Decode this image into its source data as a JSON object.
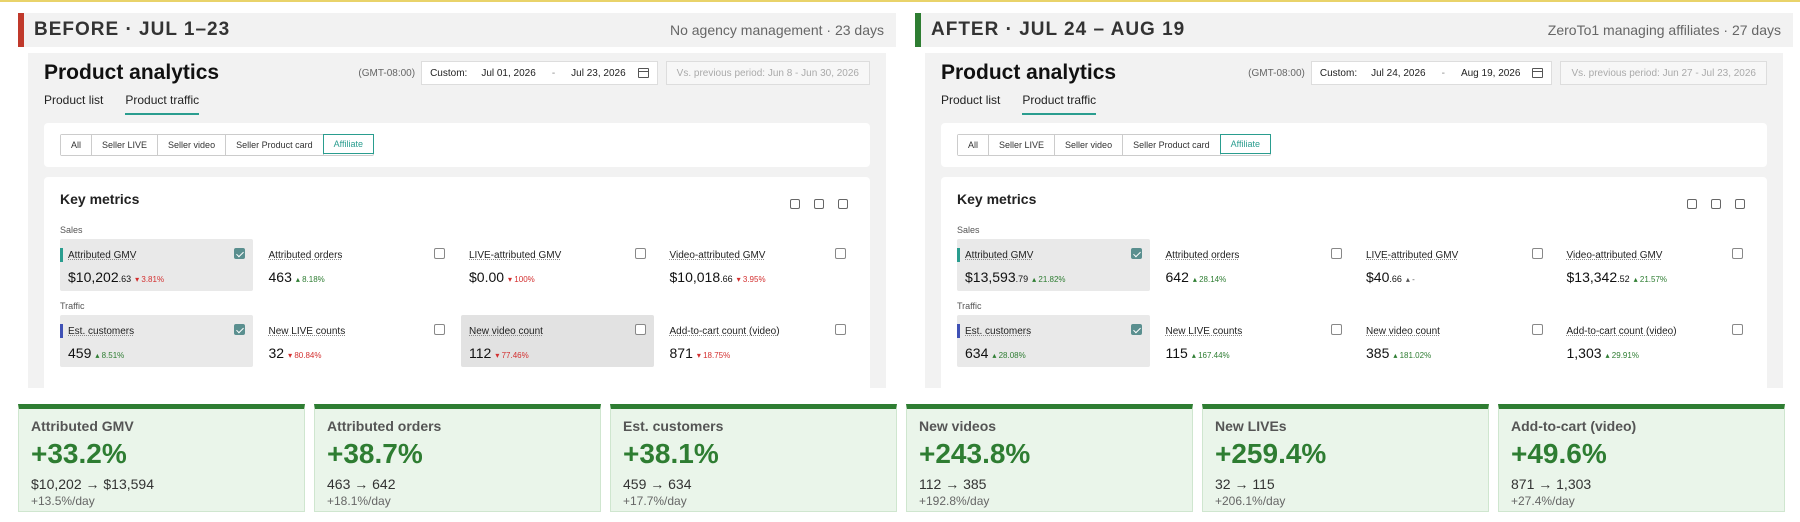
{
  "panels": {
    "before": {
      "title": "BEFORE · JUL 1–23",
      "subtitle": "No agency management · 23 days",
      "app_title": "Product analytics",
      "timezone": "(GMT-08:00)",
      "date_label": "Custom:",
      "date_start": "Jul 01, 2026",
      "date_end": "Jul 23, 2026",
      "compare": "Vs. previous period: Jun 8 - Jun 30, 2026",
      "tabs": [
        "Product list",
        "Product traffic"
      ],
      "filters": [
        "All",
        "Seller LIVE",
        "Seller video",
        "Seller Product card",
        "Affiliate"
      ],
      "key_metrics_title": "Key metrics",
      "sales_label": "Sales",
      "traffic_label": "Traffic",
      "sales": [
        {
          "name": "Attributed GMV",
          "value": "$10,202",
          "cents": ".63",
          "change": "3.81%",
          "dir": "down",
          "checked": true
        },
        {
          "name": "Attributed orders",
          "value": "463",
          "cents": "",
          "change": "8.18%",
          "dir": "up",
          "checked": false
        },
        {
          "name": "LIVE-attributed GMV",
          "value": "$0.00",
          "cents": "",
          "change": "100%",
          "dir": "down",
          "checked": false
        },
        {
          "name": "Video-attributed GMV",
          "value": "$10,018",
          "cents": ".66",
          "change": "3.95%",
          "dir": "down",
          "checked": false
        }
      ],
      "traffic": [
        {
          "name": "Est. customers",
          "value": "459",
          "change": "8.51%",
          "dir": "up",
          "checked": true
        },
        {
          "name": "New LIVE counts",
          "value": "32",
          "change": "80.84%",
          "dir": "down",
          "checked": false
        },
        {
          "name": "New video count",
          "value": "112",
          "change": "77.46%",
          "dir": "down",
          "checked": false
        },
        {
          "name": "Add-to-cart count (video)",
          "value": "871",
          "change": "18.75%",
          "dir": "down",
          "checked": false
        }
      ]
    },
    "after": {
      "title": "AFTER · JUL 24 – AUG 19",
      "subtitle": "ZeroTo1 managing affiliates · 27 days",
      "app_title": "Product analytics",
      "timezone": "(GMT-08:00)",
      "date_label": "Custom:",
      "date_start": "Jul 24, 2026",
      "date_end": "Aug 19, 2026",
      "compare": "Vs. previous period: Jun 27 - Jul 23, 2026",
      "tabs": [
        "Product list",
        "Product traffic"
      ],
      "filters": [
        "All",
        "Seller LIVE",
        "Seller video",
        "Seller Product card",
        "Affiliate"
      ],
      "key_metrics_title": "Key metrics",
      "sales_label": "Sales",
      "traffic_label": "Traffic",
      "sales": [
        {
          "name": "Attributed GMV",
          "value": "$13,593",
          "cents": ".79",
          "change": "21.82%",
          "dir": "up",
          "checked": true
        },
        {
          "name": "Attributed orders",
          "value": "642",
          "cents": "",
          "change": "28.14%",
          "dir": "up",
          "checked": false
        },
        {
          "name": "LIVE-attributed GMV",
          "value": "$40",
          "cents": ".66",
          "change": "-",
          "dir": "up",
          "checked": false
        },
        {
          "name": "Video-attributed GMV",
          "value": "$13,342",
          "cents": ".52",
          "change": "21.57%",
          "dir": "up",
          "checked": false
        }
      ],
      "traffic": [
        {
          "name": "Est. customers",
          "value": "634",
          "change": "28.08%",
          "dir": "up",
          "checked": true
        },
        {
          "name": "New LIVE counts",
          "value": "115",
          "change": "167.44%",
          "dir": "up",
          "checked": false
        },
        {
          "name": "New video count",
          "value": "385",
          "change": "181.02%",
          "dir": "up",
          "checked": false
        },
        {
          "name": "Add-to-cart count (video)",
          "value": "1,303",
          "change": "29.91%",
          "dir": "up",
          "checked": false
        }
      ]
    }
  },
  "summary": [
    {
      "label": "Attributed GMV",
      "pct": "+33.2%",
      "from": "$10,202",
      "to": "$13,594",
      "per_day": "+13.5%/day"
    },
    {
      "label": "Attributed orders",
      "pct": "+38.7%",
      "from": "463",
      "to": "642",
      "per_day": "+18.1%/day"
    },
    {
      "label": "Est. customers",
      "pct": "+38.1%",
      "from": "459",
      "to": "634",
      "per_day": "+17.7%/day"
    },
    {
      "label": "New videos",
      "pct": "+243.8%",
      "from": "112",
      "to": "385",
      "per_day": "+192.8%/day"
    },
    {
      "label": "New LIVEs",
      "pct": "+259.4%",
      "from": "32",
      "to": "115",
      "per_day": "+206.1%/day"
    },
    {
      "label": "Add-to-cart (video)",
      "pct": "+49.6%",
      "from": "871",
      "to": "1,303",
      "per_day": "+27.4%/day"
    }
  ],
  "colors": {
    "before_accent": "#c0392b",
    "after_accent": "#2e7d32",
    "teal": "#2a9d8f"
  }
}
